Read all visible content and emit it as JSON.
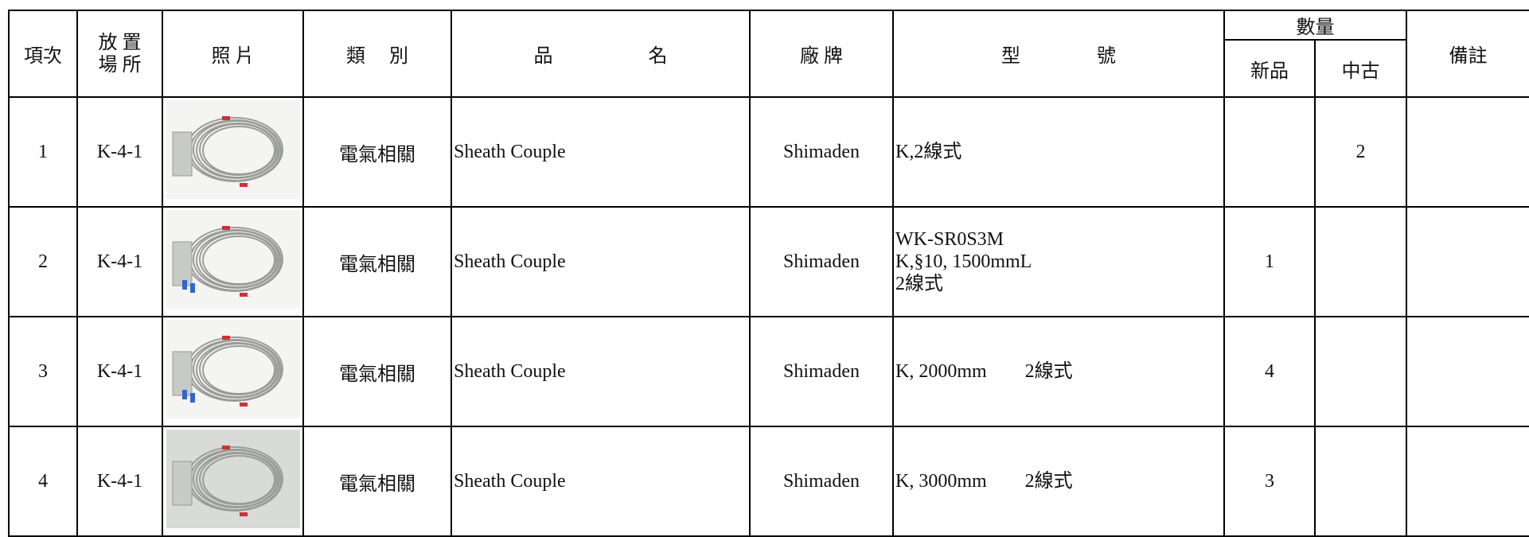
{
  "table": {
    "header": {
      "no": "項次",
      "location": [
        "放 置",
        "場 所"
      ],
      "photo": "照 片",
      "category": "類　 別",
      "name": "品　　　　　名",
      "brand": "廠 牌",
      "model": "型　　　　號",
      "quantity": "數量",
      "new": "新品",
      "used": "中古",
      "remarks": "備註"
    },
    "rows": [
      {
        "no": "1",
        "location": "K-4-1",
        "category": "電氣相關",
        "name": "Sheath Couple",
        "brand": "Shimaden",
        "model": [
          "K,2線式"
        ],
        "used": "2"
      },
      {
        "no": "2",
        "location": "K-4-1",
        "category": "電氣相關",
        "name": "Sheath Couple",
        "brand": "Shimaden",
        "model": [
          "WK-SR0S3M",
          "K,§10, 1500mmL",
          "2線式"
        ],
        "new": "1"
      },
      {
        "no": "3",
        "location": "K-4-1",
        "category": "電氣相關",
        "name": "Sheath Couple",
        "brand": "Shimaden",
        "model": [
          "K, 2000mm　　2線式"
        ],
        "new": "4"
      },
      {
        "no": "4",
        "location": "K-4-1",
        "category": "電氣相關",
        "name": "Sheath Couple",
        "brand": "Shimaden",
        "model": [
          "K, 3000mm　　2線式"
        ],
        "new": "3"
      }
    ]
  }
}
